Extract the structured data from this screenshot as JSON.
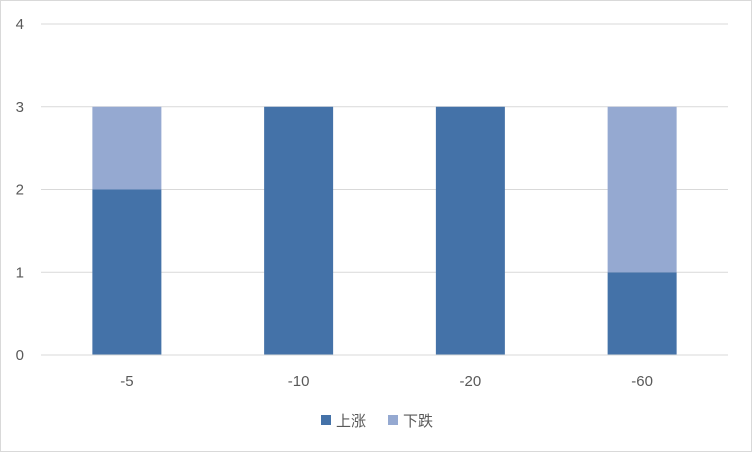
{
  "chart_data": {
    "type": "bar",
    "stacked": true,
    "categories": [
      "-5",
      "-10",
      "-20",
      "-60"
    ],
    "series": [
      {
        "name": "上涨",
        "values": [
          2,
          3,
          3,
          1
        ],
        "color": "#4472a8"
      },
      {
        "name": "下跌",
        "values": [
          1,
          0,
          0,
          2
        ],
        "color": "#95a9d1"
      }
    ],
    "ylim": [
      0,
      4
    ],
    "yticks": [
      "0",
      "1",
      "2",
      "3",
      "4"
    ],
    "grid": true,
    "legend_position": "bottom"
  }
}
